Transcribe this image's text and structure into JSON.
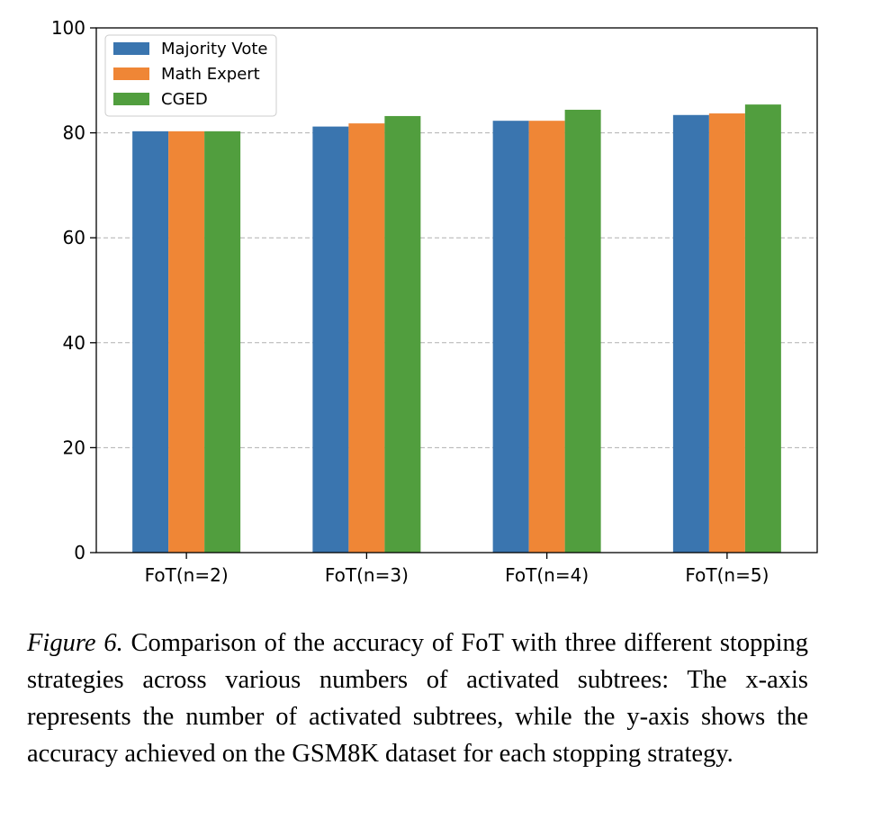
{
  "chart_data": {
    "type": "bar",
    "categories": [
      "FoT(n=2)",
      "FoT(n=3)",
      "FoT(n=4)",
      "FoT(n=5)"
    ],
    "series": [
      {
        "name": "Majority Vote",
        "values": [
          80.3,
          81.2,
          82.3,
          83.4
        ],
        "color": "#3a75af"
      },
      {
        "name": "Math Expert",
        "values": [
          80.3,
          81.8,
          82.3,
          83.7
        ],
        "color": "#ef8636"
      },
      {
        "name": "CGED",
        "values": [
          80.3,
          83.2,
          84.4,
          85.4
        ],
        "color": "#519e3e"
      }
    ],
    "yticks": [
      0,
      20,
      40,
      60,
      80,
      100
    ],
    "ylim": [
      0,
      100
    ],
    "grid": true,
    "legend_position": "top-left"
  },
  "caption": {
    "label": "Figure 6.",
    "text": " Comparison of the accuracy of FoT with three different stopping strategies across various numbers of activated subtrees: The x-axis represents the number of activated subtrees, while the y-axis shows the accuracy achieved on the GSM8K dataset for each stopping strategy."
  }
}
